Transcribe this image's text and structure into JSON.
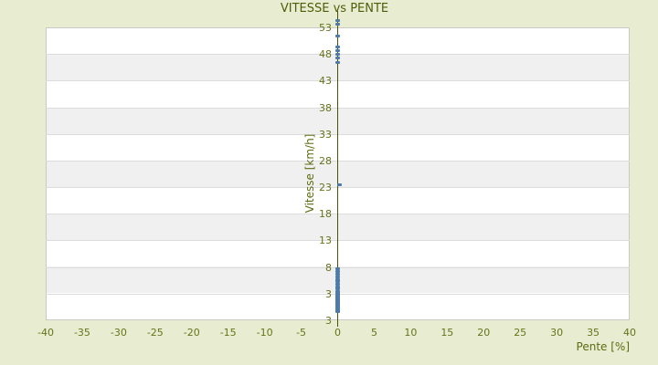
{
  "page": {
    "title": "VITESSE vs PENTE"
  },
  "colors": {
    "background": "#e8edd2",
    "plot_background": "#ffffff",
    "band_alt": "#f0f0f0",
    "grid": "#dcdcdc",
    "plot_border": "#c9c9c9",
    "axis_line": "#45520a",
    "text_olive": "#5c6b10",
    "point_blue": "#4b7ba6"
  },
  "chart_data": {
    "type": "scatter",
    "title": "VITESSE vs PENTE",
    "xlabel": "Pente [%]",
    "ylabel": "Vitesse [km/h]",
    "xlim": [
      -40,
      40
    ],
    "ylim": [
      -2,
      53
    ],
    "x_ticks": [
      -40,
      -35,
      -30,
      -25,
      -20,
      -15,
      -10,
      -5,
      0,
      5,
      10,
      15,
      20,
      25,
      30,
      35,
      40
    ],
    "y_ticks": [
      53,
      48,
      43,
      38,
      33,
      28,
      23,
      18,
      13,
      8,
      3
    ],
    "y_axis_bottom_label": "3",
    "grid": "horizontal-alternating-bands",
    "legend": "none",
    "series": [
      {
        "name": "vitesse",
        "marker_color": "#4b7ba6",
        "points": [
          [
            0,
            54.3
          ],
          [
            0,
            53.6
          ],
          [
            0,
            51.4
          ],
          [
            0.1,
            49.3
          ],
          [
            0,
            48.7
          ],
          [
            0.1,
            48.0
          ],
          [
            0,
            47.2
          ],
          [
            0,
            46.4
          ],
          [
            0.3,
            23.4
          ],
          [
            0,
            7.7
          ],
          [
            0,
            7.2
          ],
          [
            0,
            6.7
          ],
          [
            0,
            6.2
          ],
          [
            0,
            5.7
          ],
          [
            0,
            5.2
          ],
          [
            0.1,
            4.75
          ],
          [
            0,
            4.3
          ],
          [
            0,
            3.85
          ],
          [
            0,
            3.4
          ],
          [
            0,
            3.1
          ],
          [
            0.1,
            2.85
          ],
          [
            0,
            2.6
          ],
          [
            0,
            2.35
          ],
          [
            0,
            2.1
          ],
          [
            0.1,
            1.85
          ],
          [
            0,
            1.6
          ],
          [
            0,
            1.35
          ],
          [
            0,
            1.1
          ],
          [
            0,
            0.85
          ],
          [
            0.1,
            0.6
          ],
          [
            0,
            0.35
          ],
          [
            0,
            0.1
          ],
          [
            0,
            -0.15
          ],
          [
            0,
            -0.35
          ]
        ]
      }
    ]
  }
}
